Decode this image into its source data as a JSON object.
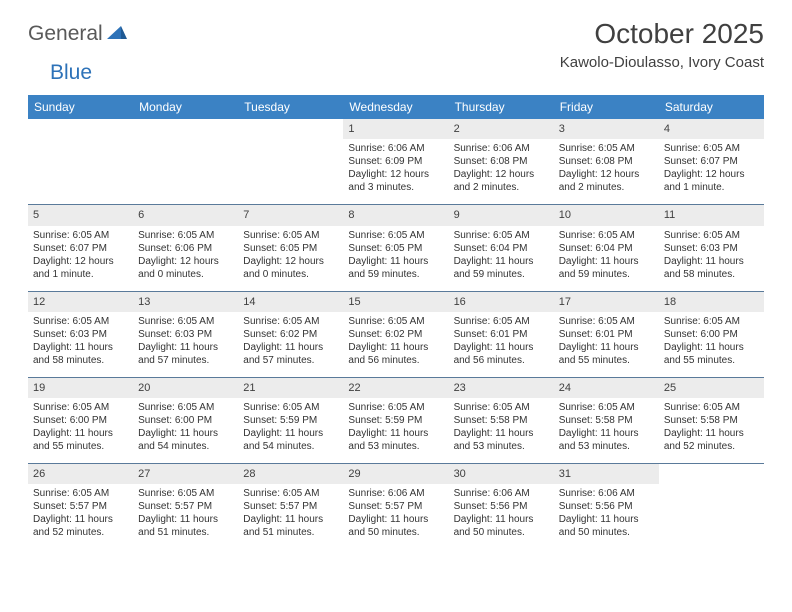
{
  "brand": {
    "word1": "General",
    "word2": "Blue",
    "text_color": "#595959",
    "accent_color": "#2d72b8"
  },
  "title": "October 2025",
  "location": "Kawolo-Dioulasso, Ivory Coast",
  "header_bg": "#3b82c4",
  "header_fg": "#ffffff",
  "daynum_bg": "#ececec",
  "row_border": "#5a7a9a",
  "font_family": "Arial",
  "weekdays": [
    "Sunday",
    "Monday",
    "Tuesday",
    "Wednesday",
    "Thursday",
    "Friday",
    "Saturday"
  ],
  "weeks": [
    [
      null,
      null,
      null,
      {
        "n": "1",
        "sr": "6:06 AM",
        "ss": "6:09 PM",
        "dl": "12 hours and 3 minutes."
      },
      {
        "n": "2",
        "sr": "6:06 AM",
        "ss": "6:08 PM",
        "dl": "12 hours and 2 minutes."
      },
      {
        "n": "3",
        "sr": "6:05 AM",
        "ss": "6:08 PM",
        "dl": "12 hours and 2 minutes."
      },
      {
        "n": "4",
        "sr": "6:05 AM",
        "ss": "6:07 PM",
        "dl": "12 hours and 1 minute."
      }
    ],
    [
      {
        "n": "5",
        "sr": "6:05 AM",
        "ss": "6:07 PM",
        "dl": "12 hours and 1 minute."
      },
      {
        "n": "6",
        "sr": "6:05 AM",
        "ss": "6:06 PM",
        "dl": "12 hours and 0 minutes."
      },
      {
        "n": "7",
        "sr": "6:05 AM",
        "ss": "6:05 PM",
        "dl": "12 hours and 0 minutes."
      },
      {
        "n": "8",
        "sr": "6:05 AM",
        "ss": "6:05 PM",
        "dl": "11 hours and 59 minutes."
      },
      {
        "n": "9",
        "sr": "6:05 AM",
        "ss": "6:04 PM",
        "dl": "11 hours and 59 minutes."
      },
      {
        "n": "10",
        "sr": "6:05 AM",
        "ss": "6:04 PM",
        "dl": "11 hours and 59 minutes."
      },
      {
        "n": "11",
        "sr": "6:05 AM",
        "ss": "6:03 PM",
        "dl": "11 hours and 58 minutes."
      }
    ],
    [
      {
        "n": "12",
        "sr": "6:05 AM",
        "ss": "6:03 PM",
        "dl": "11 hours and 58 minutes."
      },
      {
        "n": "13",
        "sr": "6:05 AM",
        "ss": "6:03 PM",
        "dl": "11 hours and 57 minutes."
      },
      {
        "n": "14",
        "sr": "6:05 AM",
        "ss": "6:02 PM",
        "dl": "11 hours and 57 minutes."
      },
      {
        "n": "15",
        "sr": "6:05 AM",
        "ss": "6:02 PM",
        "dl": "11 hours and 56 minutes."
      },
      {
        "n": "16",
        "sr": "6:05 AM",
        "ss": "6:01 PM",
        "dl": "11 hours and 56 minutes."
      },
      {
        "n": "17",
        "sr": "6:05 AM",
        "ss": "6:01 PM",
        "dl": "11 hours and 55 minutes."
      },
      {
        "n": "18",
        "sr": "6:05 AM",
        "ss": "6:00 PM",
        "dl": "11 hours and 55 minutes."
      }
    ],
    [
      {
        "n": "19",
        "sr": "6:05 AM",
        "ss": "6:00 PM",
        "dl": "11 hours and 55 minutes."
      },
      {
        "n": "20",
        "sr": "6:05 AM",
        "ss": "6:00 PM",
        "dl": "11 hours and 54 minutes."
      },
      {
        "n": "21",
        "sr": "6:05 AM",
        "ss": "5:59 PM",
        "dl": "11 hours and 54 minutes."
      },
      {
        "n": "22",
        "sr": "6:05 AM",
        "ss": "5:59 PM",
        "dl": "11 hours and 53 minutes."
      },
      {
        "n": "23",
        "sr": "6:05 AM",
        "ss": "5:58 PM",
        "dl": "11 hours and 53 minutes."
      },
      {
        "n": "24",
        "sr": "6:05 AM",
        "ss": "5:58 PM",
        "dl": "11 hours and 53 minutes."
      },
      {
        "n": "25",
        "sr": "6:05 AM",
        "ss": "5:58 PM",
        "dl": "11 hours and 52 minutes."
      }
    ],
    [
      {
        "n": "26",
        "sr": "6:05 AM",
        "ss": "5:57 PM",
        "dl": "11 hours and 52 minutes."
      },
      {
        "n": "27",
        "sr": "6:05 AM",
        "ss": "5:57 PM",
        "dl": "11 hours and 51 minutes."
      },
      {
        "n": "28",
        "sr": "6:05 AM",
        "ss": "5:57 PM",
        "dl": "11 hours and 51 minutes."
      },
      {
        "n": "29",
        "sr": "6:06 AM",
        "ss": "5:57 PM",
        "dl": "11 hours and 50 minutes."
      },
      {
        "n": "30",
        "sr": "6:06 AM",
        "ss": "5:56 PM",
        "dl": "11 hours and 50 minutes."
      },
      {
        "n": "31",
        "sr": "6:06 AM",
        "ss": "5:56 PM",
        "dl": "11 hours and 50 minutes."
      },
      null
    ]
  ],
  "labels": {
    "sunrise": "Sunrise:",
    "sunset": "Sunset:",
    "daylight": "Daylight:"
  }
}
